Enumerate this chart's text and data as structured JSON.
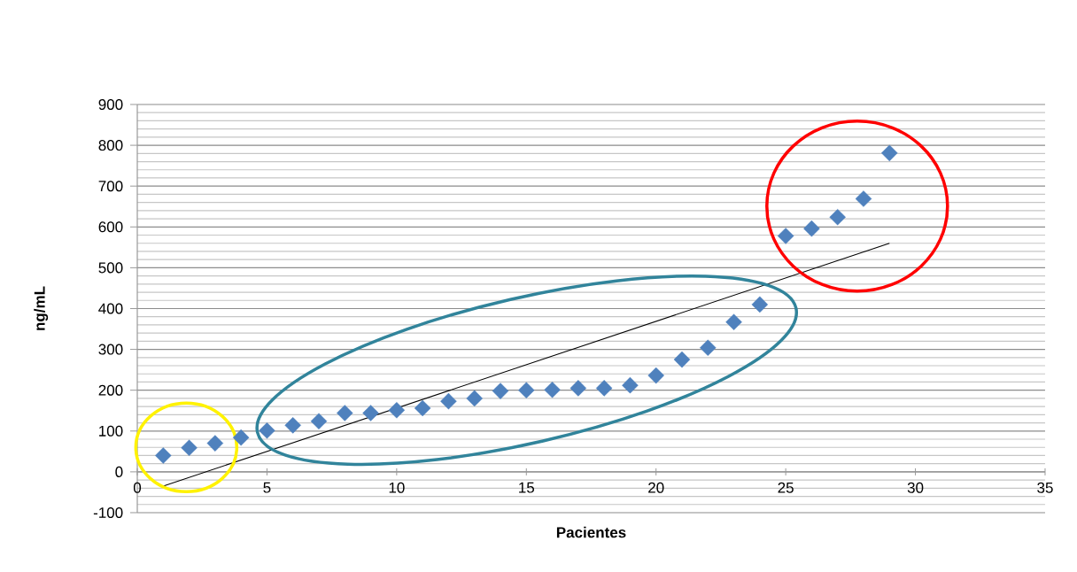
{
  "chart_data": {
    "type": "scatter",
    "xlabel": "Pacientes",
    "ylabel": "ng/mL",
    "xlim": [
      0,
      35
    ],
    "xticks": [
      0,
      5,
      10,
      15,
      20,
      25,
      30,
      35
    ],
    "ylim": [
      -100,
      900
    ],
    "yticks": [
      -100,
      0,
      100,
      200,
      300,
      400,
      500,
      600,
      700,
      800,
      900
    ],
    "grid": "y",
    "marker": "diamond",
    "series": [
      {
        "type": "scatter",
        "color": "#4f81bd",
        "x": [
          1,
          2,
          3,
          4,
          5,
          6,
          7,
          8,
          9,
          10,
          11,
          12,
          13,
          14,
          15,
          16,
          17,
          18,
          19,
          20,
          21,
          22,
          23,
          24,
          25,
          26,
          27,
          28,
          29
        ],
        "values": [
          40,
          59,
          70,
          84,
          101,
          114,
          124,
          144,
          144,
          151,
          156,
          173,
          180,
          198,
          200,
          201,
          205,
          205,
          212,
          236,
          275,
          304,
          367,
          410,
          578,
          596,
          624,
          669,
          781
        ]
      },
      {
        "type": "line",
        "color": "#000000",
        "marker": "none",
        "x": [
          1,
          29
        ],
        "values": [
          -35,
          560
        ]
      }
    ]
  }
}
